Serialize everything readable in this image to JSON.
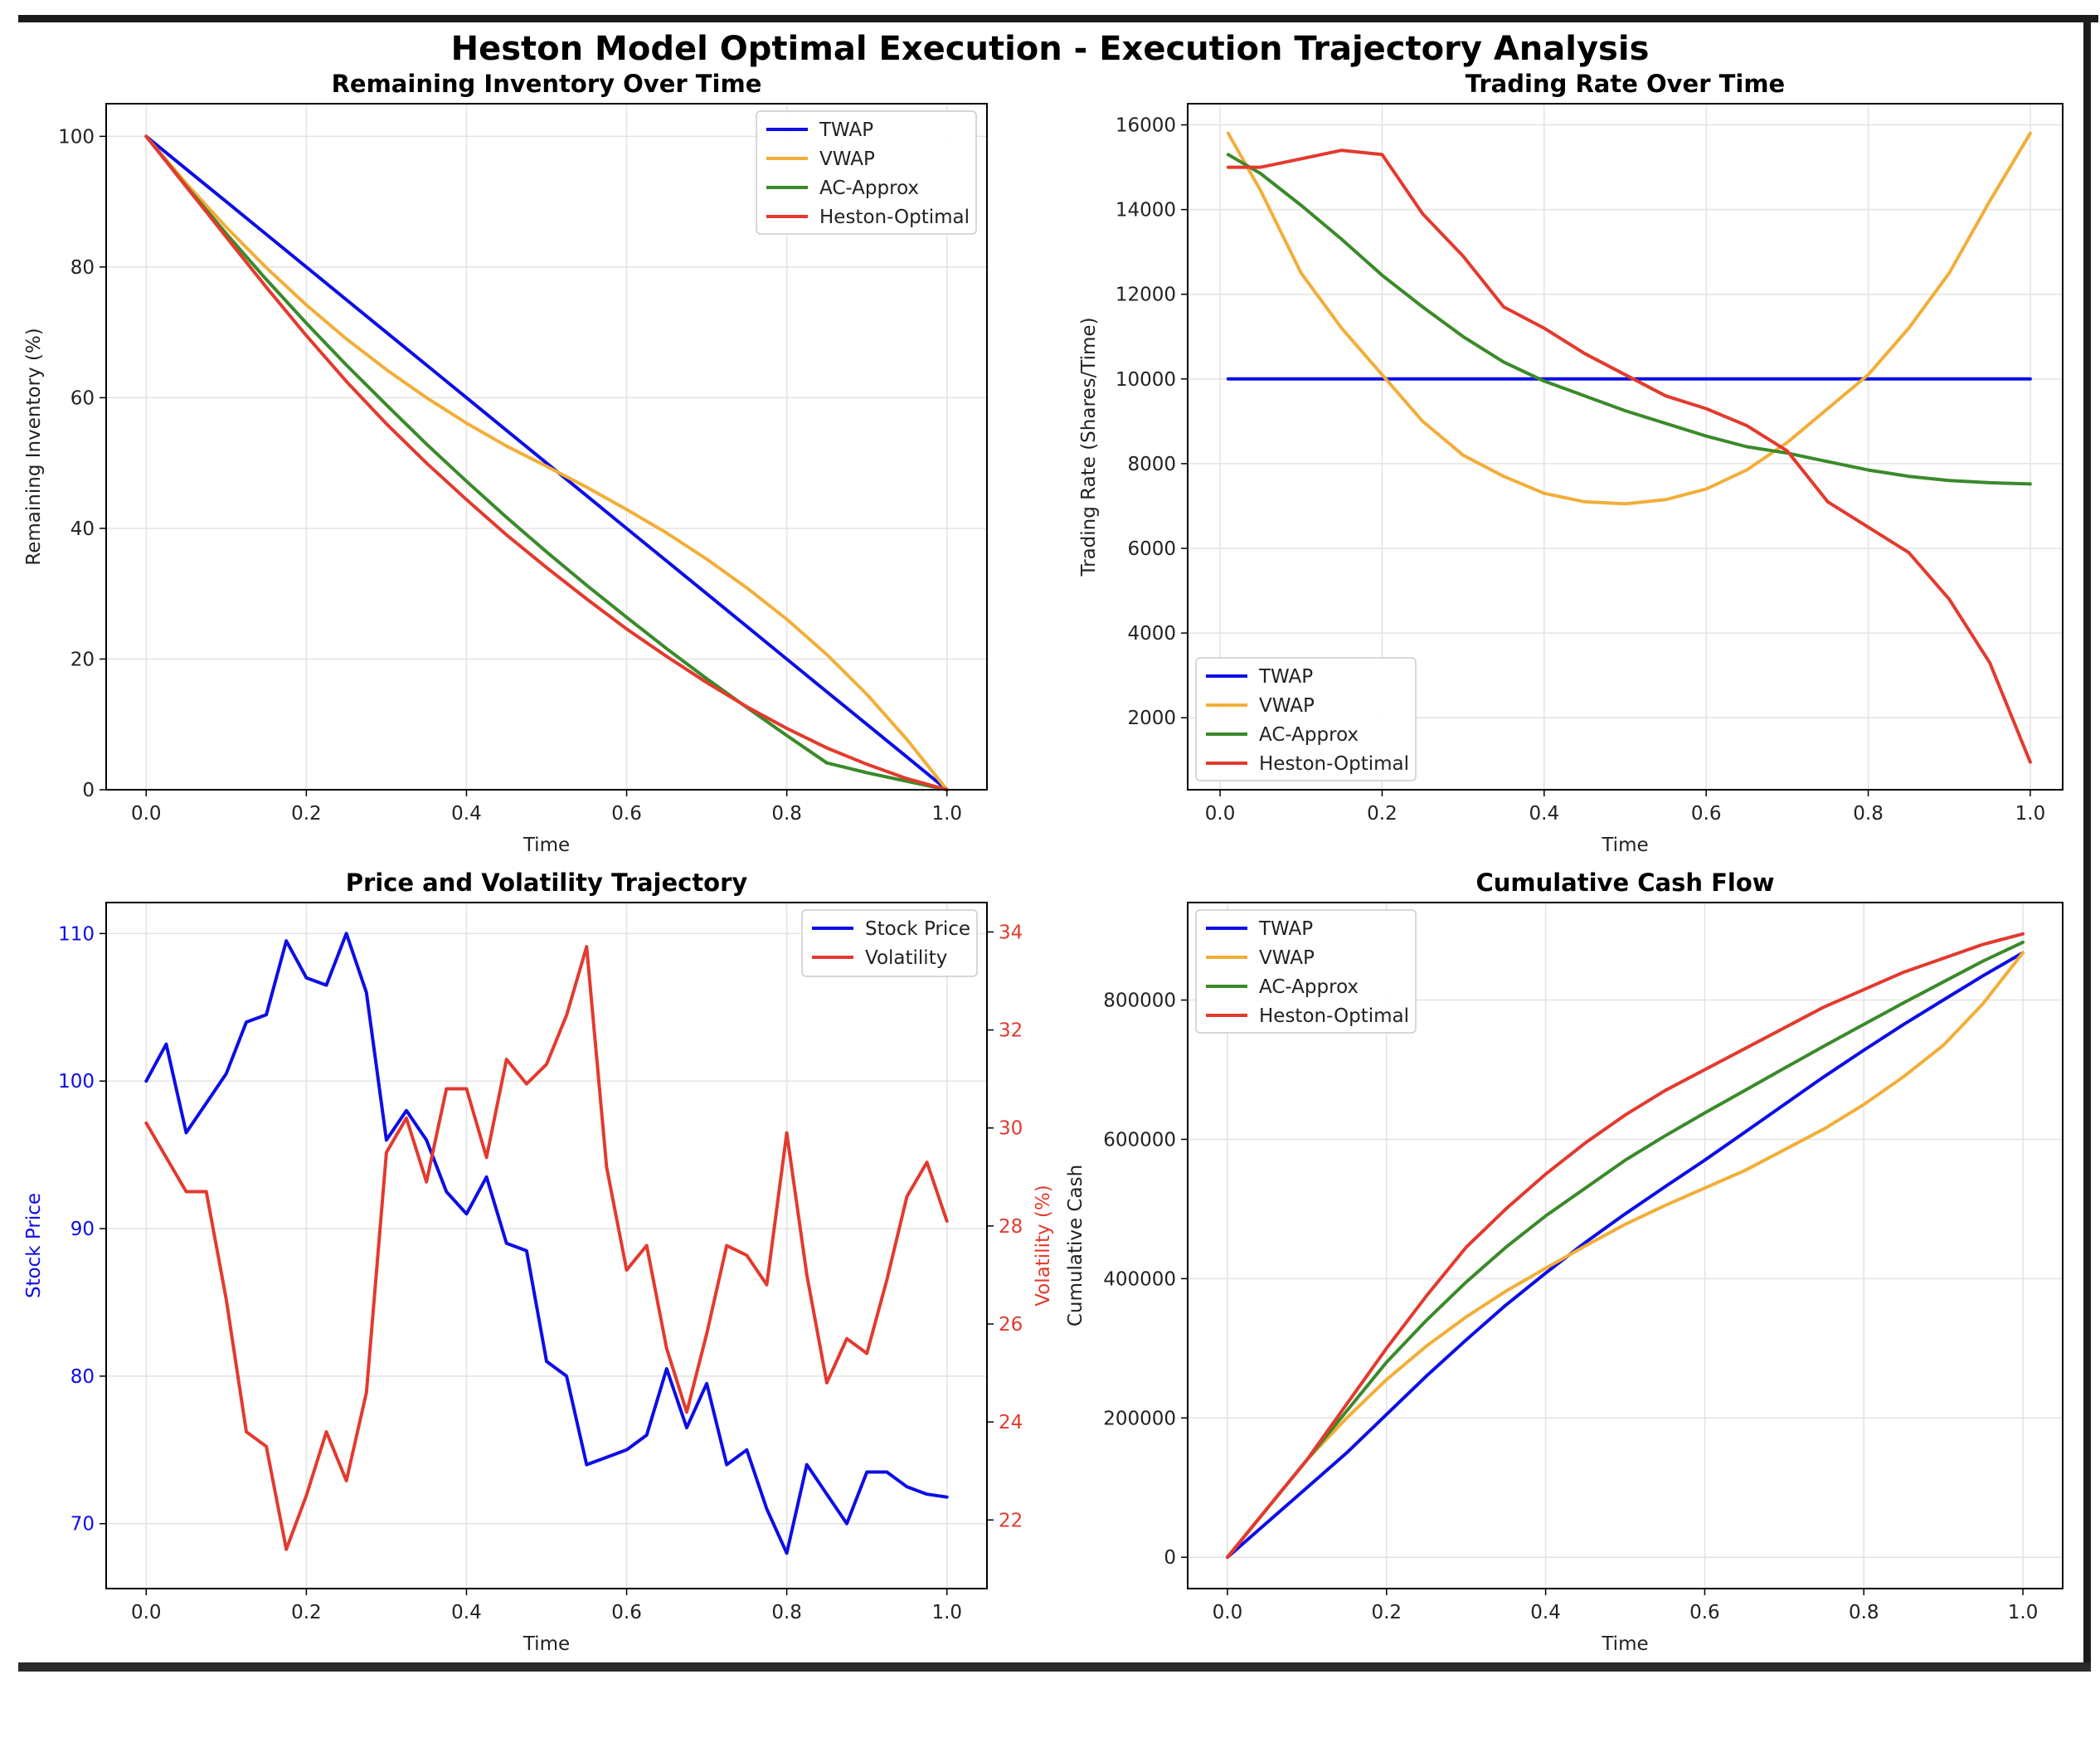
{
  "title": "Heston Model Optimal Execution - Execution Trajectory Analysis",
  "colors": {
    "TWAP": "#0d0de6",
    "VWAP": "#f2ae38",
    "AC-Approx": "#3a8a2a",
    "Heston-Optimal": "#e33a2e",
    "Stock Price": "#0d0de6",
    "Volatility": "#e33a2e"
  },
  "chart_data": [
    {
      "type": "line",
      "title": "Remaining Inventory Over Time",
      "xlabel": "Time",
      "ylabel": "Remaining Inventory (%)",
      "xlim": [
        -0.05,
        1.05
      ],
      "ylim": [
        0,
        105
      ],
      "xticks": [
        0.0,
        0.2,
        0.4,
        0.6,
        0.8,
        1.0
      ],
      "xtick_labels": [
        "0.0",
        "0.2",
        "0.4",
        "0.6",
        "0.8",
        "1.0"
      ],
      "yticks": [
        0,
        20,
        40,
        60,
        80,
        100
      ],
      "ytick_labels": [
        "0",
        "20",
        "40",
        "60",
        "80",
        "100"
      ],
      "grid": true,
      "legend": "top-right",
      "x": [
        0.0,
        0.05,
        0.1,
        0.15,
        0.2,
        0.25,
        0.3,
        0.35,
        0.4,
        0.45,
        0.5,
        0.55,
        0.6,
        0.65,
        0.7,
        0.75,
        0.8,
        0.85,
        0.9,
        0.95,
        1.0
      ],
      "series": [
        {
          "name": "TWAP",
          "values": [
            100,
            95,
            90,
            85,
            80,
            75,
            70,
            65,
            60,
            55,
            50,
            45,
            40,
            35,
            30,
            25,
            20,
            15,
            10,
            5,
            0
          ]
        },
        {
          "name": "VWAP",
          "values": [
            100,
            92.8,
            86.1,
            79.9,
            74.2,
            69,
            64.3,
            60,
            56.1,
            52.6,
            49.5,
            46.3,
            42.9,
            39.3,
            35.3,
            30.9,
            26.1,
            20.7,
            14.6,
            7.7,
            0
          ]
        },
        {
          "name": "AC-Approx",
          "values": [
            100,
            92.4,
            85.1,
            78.1,
            71.4,
            65,
            58.9,
            52.9,
            47.2,
            41.7,
            36.4,
            31.3,
            26.4,
            21.6,
            17,
            12.6,
            8.3,
            4.1,
            2.6,
            1.3,
            0
          ]
        },
        {
          "name": "Heston-Optimal",
          "values": [
            100,
            92.3,
            84.6,
            76.9,
            69.5,
            62.5,
            56,
            50,
            44.4,
            39,
            34,
            29.2,
            24.6,
            20.4,
            16.4,
            12.7,
            9.4,
            6.4,
            3.9,
            1.7,
            0
          ]
        }
      ]
    },
    {
      "type": "line",
      "title": "Trading Rate Over Time",
      "xlabel": "Time",
      "ylabel": "Trading Rate (Shares/Time)",
      "xlim": [
        -0.04,
        1.04
      ],
      "ylim": [
        300,
        16500
      ],
      "xticks": [
        0.0,
        0.2,
        0.4,
        0.6,
        0.8,
        1.0
      ],
      "xtick_labels": [
        "0.0",
        "0.2",
        "0.4",
        "0.6",
        "0.8",
        "1.0"
      ],
      "yticks": [
        2000,
        4000,
        6000,
        8000,
        10000,
        12000,
        14000,
        16000
      ],
      "ytick_labels": [
        "2000",
        "4000",
        "6000",
        "8000",
        "10000",
        "12000",
        "14000",
        "16000"
      ],
      "grid": true,
      "legend": "bottom-left",
      "x": [
        0.01,
        0.05,
        0.1,
        0.15,
        0.2,
        0.25,
        0.3,
        0.35,
        0.4,
        0.45,
        0.5,
        0.55,
        0.6,
        0.65,
        0.7,
        0.75,
        0.8,
        0.85,
        0.9,
        0.95,
        1.0
      ],
      "series": [
        {
          "name": "TWAP",
          "values": [
            10000,
            10000,
            10000,
            10000,
            10000,
            10000,
            10000,
            10000,
            10000,
            10000,
            10000,
            10000,
            10000,
            10000,
            10000,
            10000,
            10000,
            10000,
            10000,
            10000,
            10000
          ]
        },
        {
          "name": "VWAP",
          "values": [
            15800,
            14450,
            12500,
            11200,
            10100,
            9000,
            8200,
            7700,
            7300,
            7100,
            7050,
            7150,
            7400,
            7850,
            8500,
            9300,
            10100,
            11200,
            12500,
            14200,
            15800
          ]
        },
        {
          "name": "AC-Approx",
          "values": [
            15300,
            14850,
            14100,
            13300,
            12450,
            11700,
            11000,
            10400,
            9950,
            9600,
            9250,
            8950,
            8650,
            8400,
            8250,
            8050,
            7850,
            7700,
            7600,
            7550,
            7520
          ]
        },
        {
          "name": "Heston-Optimal",
          "values": [
            15000,
            15000,
            15200,
            15400,
            15300,
            13900,
            12900,
            11700,
            11200,
            10600,
            10100,
            9600,
            9300,
            8900,
            8300,
            7100,
            6500,
            5900,
            4800,
            3300,
            950
          ]
        }
      ]
    },
    {
      "type": "line",
      "title": "Price and Volatility Trajectory",
      "xlabel": "Time",
      "ylabel": "Stock Price",
      "ylabel_right": "Volatility (%)",
      "xlim": [
        -0.05,
        1.05
      ],
      "ylim": [
        65.6,
        112.1
      ],
      "ylim_right": [
        20.6,
        34.6
      ],
      "xticks": [
        0.0,
        0.2,
        0.4,
        0.6,
        0.8,
        1.0
      ],
      "xtick_labels": [
        "0.0",
        "0.2",
        "0.4",
        "0.6",
        "0.8",
        "1.0"
      ],
      "yticks": [
        70,
        80,
        90,
        100,
        110
      ],
      "ytick_labels": [
        "70",
        "80",
        "90",
        "100",
        "110"
      ],
      "yticks_right": [
        22,
        24,
        26,
        28,
        30,
        32,
        34
      ],
      "ytick_labels_right": [
        "22",
        "24",
        "26",
        "28",
        "30",
        "32",
        "34"
      ],
      "grid": true,
      "legend": "top-right",
      "x": [
        0.0,
        0.025,
        0.05,
        0.075,
        0.1,
        0.125,
        0.15,
        0.175,
        0.2,
        0.225,
        0.25,
        0.275,
        0.3,
        0.325,
        0.35,
        0.375,
        0.4,
        0.425,
        0.45,
        0.475,
        0.5,
        0.525,
        0.55,
        0.575,
        0.6,
        0.625,
        0.65,
        0.675,
        0.7,
        0.725,
        0.75,
        0.775,
        0.8,
        0.825,
        0.85,
        0.875,
        0.9,
        0.925,
        0.95,
        0.975,
        1.0
      ],
      "series": [
        {
          "name": "Stock Price",
          "axis": "left",
          "values": [
            100,
            102.5,
            96.5,
            98.5,
            100.5,
            104,
            104.5,
            109.5,
            107,
            106.5,
            110,
            106,
            96,
            98,
            96,
            92.5,
            91,
            93.5,
            89,
            88.5,
            81,
            80,
            74,
            74.5,
            75,
            76,
            80.5,
            76.5,
            79.5,
            74,
            75,
            71,
            68,
            74,
            72,
            70,
            73.5,
            73.5,
            72.5,
            72,
            71.8
          ]
        },
        {
          "name": "Volatility",
          "axis": "right",
          "values": [
            30.1,
            29.4,
            28.7,
            28.7,
            26.5,
            23.8,
            23.5,
            21.4,
            22.5,
            23.8,
            22.8,
            24.6,
            29.5,
            30.2,
            28.9,
            30.8,
            30.8,
            29.4,
            31.4,
            30.9,
            31.3,
            32.3,
            33.7,
            29.2,
            27.1,
            27.6,
            25.5,
            24.2,
            25.8,
            27.6,
            27.4,
            26.8,
            29.9,
            27.0,
            24.8,
            25.7,
            25.4,
            26.9,
            28.6,
            29.3,
            28.1
          ]
        }
      ]
    },
    {
      "type": "line",
      "title": "Cumulative Cash Flow",
      "xlabel": "Time",
      "ylabel": "Cumulative Cash",
      "xlim": [
        -0.05,
        1.05
      ],
      "ylim": [
        -45000,
        940000
      ],
      "xticks": [
        0.0,
        0.2,
        0.4,
        0.6,
        0.8,
        1.0
      ],
      "xtick_labels": [
        "0.0",
        "0.2",
        "0.4",
        "0.6",
        "0.8",
        "1.0"
      ],
      "yticks": [
        0,
        200000,
        400000,
        600000,
        800000
      ],
      "ytick_labels": [
        "0",
        "200000",
        "400000",
        "600000",
        "800000"
      ],
      "grid": true,
      "legend": "top-left",
      "x": [
        0.0,
        0.05,
        0.1,
        0.15,
        0.2,
        0.25,
        0.3,
        0.35,
        0.4,
        0.45,
        0.5,
        0.55,
        0.6,
        0.65,
        0.7,
        0.75,
        0.8,
        0.85,
        0.9,
        0.95,
        1.0
      ],
      "series": [
        {
          "name": "TWAP",
          "values": [
            0,
            50000,
            100000,
            150000,
            205000,
            260000,
            312000,
            362000,
            408000,
            452000,
            493000,
            532000,
            570000,
            610000,
            650000,
            690000,
            728000,
            765000,
            800000,
            835000,
            868000
          ]
        },
        {
          "name": "VWAP",
          "values": [
            0,
            70000,
            140000,
            200000,
            255000,
            303000,
            345000,
            382000,
            415000,
            447000,
            478000,
            505000,
            530000,
            555000,
            585000,
            615000,
            650000,
            690000,
            735000,
            795000,
            868000
          ]
        },
        {
          "name": "AC-Approx",
          "values": [
            0,
            70000,
            140000,
            210000,
            280000,
            340000,
            395000,
            445000,
            490000,
            530000,
            570000,
            605000,
            638000,
            670000,
            702000,
            734000,
            765000,
            796000,
            826000,
            856000,
            883000
          ]
        },
        {
          "name": "Heston-Optimal",
          "values": [
            0,
            70000,
            140000,
            220000,
            300000,
            375000,
            445000,
            500000,
            550000,
            595000,
            635000,
            670000,
            700000,
            730000,
            760000,
            790000,
            815000,
            840000,
            860000,
            880000,
            895000
          ]
        }
      ]
    }
  ]
}
